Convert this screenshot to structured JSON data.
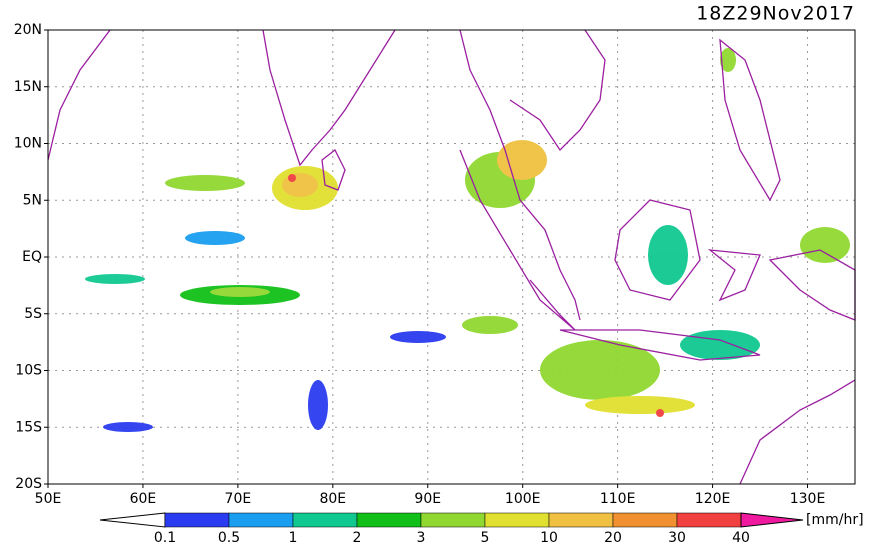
{
  "title": "18Z29Nov2017",
  "lat_labels": [
    "20N",
    "15N",
    "10N",
    "5N",
    "EQ",
    "5S",
    "10S",
    "15S",
    "20S"
  ],
  "lon_labels": [
    "50E",
    "60E",
    "70E",
    "80E",
    "90E",
    "100E",
    "110E",
    "120E",
    "130E"
  ],
  "colorbar": {
    "labels": [
      "0.1",
      "0.5",
      "1",
      "2",
      "3",
      "5",
      "10",
      "20",
      "30",
      "40"
    ],
    "colors": [
      "#2a3cf0",
      "#1a9ef0",
      "#10c890",
      "#10c018",
      "#90d830",
      "#e0e030",
      "#f0c040",
      "#f09030",
      "#f04040"
    ],
    "unit": "[mm/hr]"
  }
}
